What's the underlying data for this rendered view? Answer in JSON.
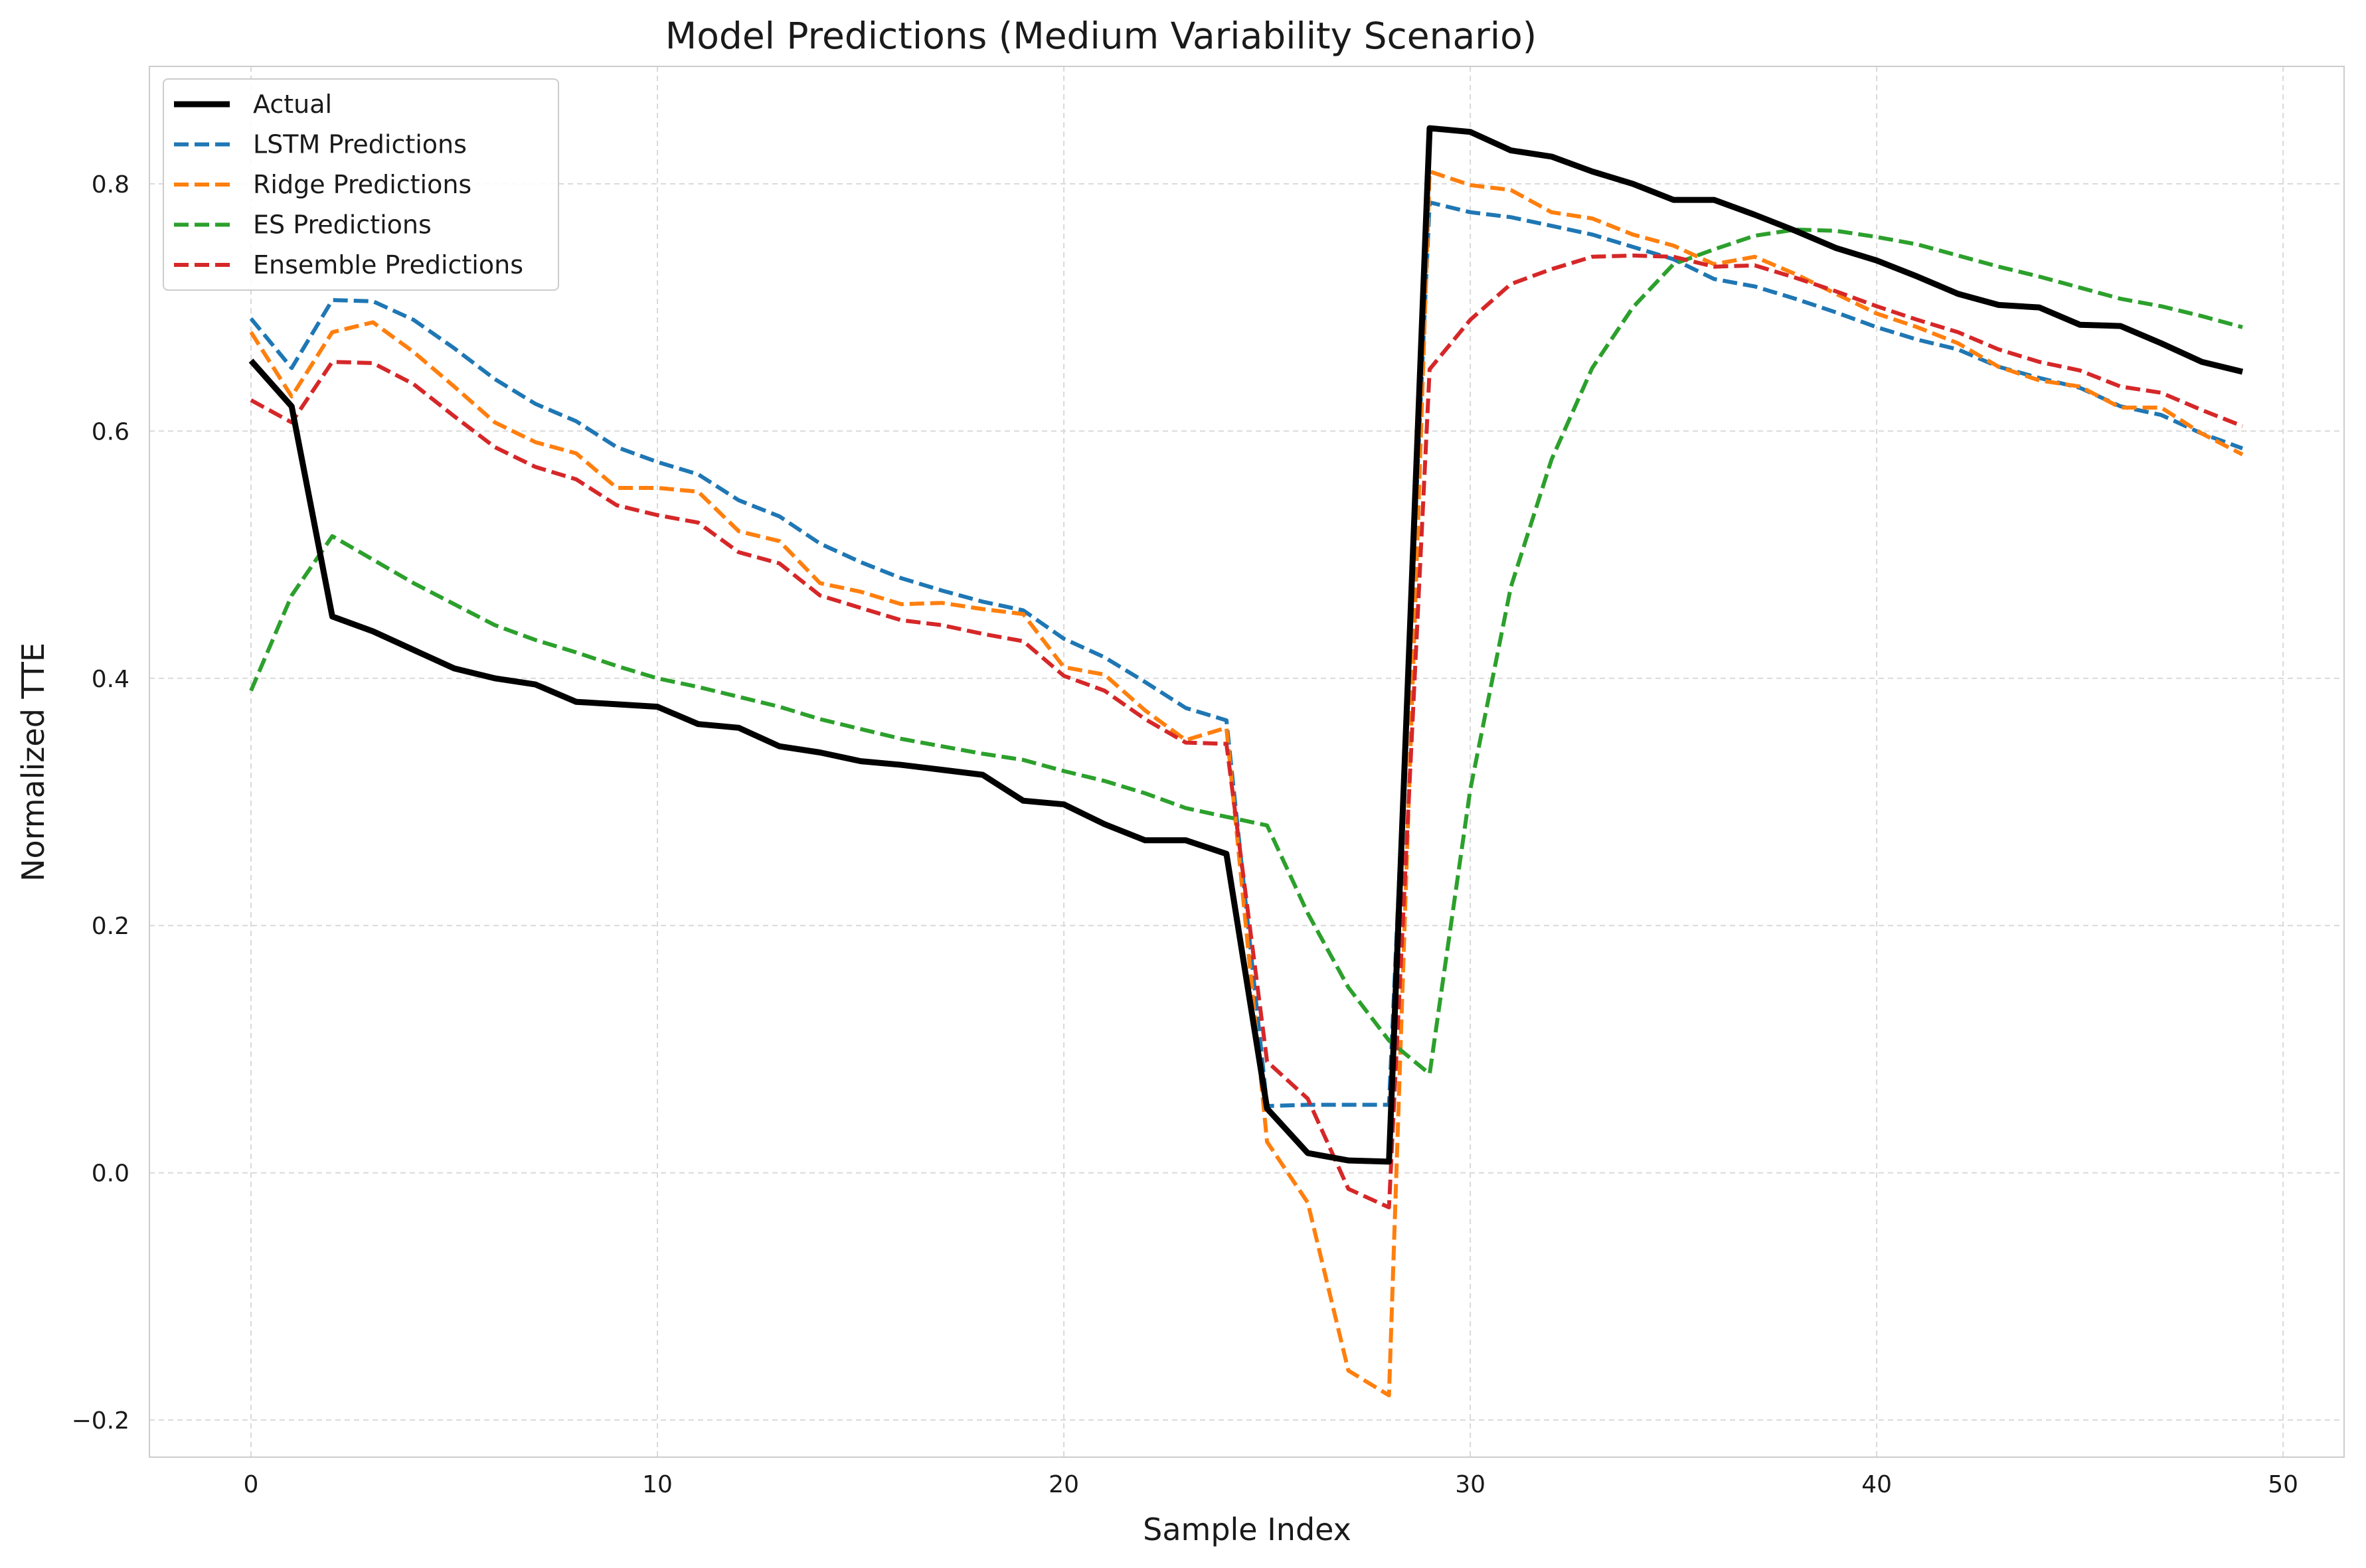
{
  "chart_data": {
    "type": "line",
    "title": "Model Predictions (Medium Variability Scenario)",
    "xlabel": "Sample Index",
    "ylabel": "Normalized TTE",
    "xlim": [
      -2.5,
      51.5
    ],
    "ylim": [
      -0.23,
      0.895
    ],
    "xticks": [
      0,
      10,
      20,
      30,
      40,
      50
    ],
    "yticks": [
      -0.2,
      0.0,
      0.2,
      0.4,
      0.6,
      0.8
    ],
    "xtick_labels": [
      "0",
      "10",
      "20",
      "30",
      "40",
      "50"
    ],
    "ytick_labels": [
      "−0.2",
      "0.0",
      "0.2",
      "0.4",
      "0.6",
      "0.8"
    ],
    "grid": true,
    "legend_position": "top-left",
    "x": [
      0,
      1,
      2,
      3,
      4,
      5,
      6,
      7,
      8,
      9,
      10,
      11,
      12,
      13,
      14,
      15,
      16,
      17,
      18,
      19,
      20,
      21,
      22,
      23,
      24,
      25,
      26,
      27,
      28,
      29,
      30,
      31,
      32,
      33,
      34,
      35,
      36,
      37,
      38,
      39,
      40,
      41,
      42,
      43,
      44,
      45,
      46,
      47,
      48,
      49
    ],
    "series": [
      {
        "name": "Actual",
        "color": "#000000",
        "style": "solid",
        "values": [
          0.657,
          0.62,
          0.45,
          0.438,
          0.423,
          0.408,
          0.4,
          0.395,
          0.381,
          0.379,
          0.377,
          0.363,
          0.36,
          0.345,
          0.34,
          0.333,
          0.33,
          0.326,
          0.322,
          0.301,
          0.298,
          0.282,
          0.269,
          0.269,
          0.258,
          0.052,
          0.016,
          0.01,
          0.009,
          0.845,
          0.842,
          0.827,
          0.822,
          0.81,
          0.8,
          0.787,
          0.787,
          0.775,
          0.762,
          0.748,
          0.738,
          0.725,
          0.711,
          0.702,
          0.7,
          0.686,
          0.685,
          0.671,
          0.656,
          0.648
        ]
      },
      {
        "name": "LSTM Predictions",
        "color": "#1f77b4",
        "style": "dashed",
        "values": [
          0.691,
          0.651,
          0.706,
          0.705,
          0.69,
          0.667,
          0.642,
          0.622,
          0.608,
          0.587,
          0.575,
          0.565,
          0.544,
          0.531,
          0.509,
          0.494,
          0.481,
          0.471,
          0.462,
          0.455,
          0.432,
          0.417,
          0.397,
          0.376,
          0.366,
          0.054,
          0.055,
          0.055,
          0.055,
          0.785,
          0.777,
          0.773,
          0.766,
          0.759,
          0.749,
          0.739,
          0.723,
          0.717,
          0.707,
          0.696,
          0.684,
          0.674,
          0.666,
          0.652,
          0.643,
          0.635,
          0.62,
          0.613,
          0.598,
          0.586
        ]
      },
      {
        "name": "Ridge Predictions",
        "color": "#ff7f0e",
        "style": "dashed",
        "values": [
          0.68,
          0.628,
          0.68,
          0.688,
          0.664,
          0.636,
          0.607,
          0.591,
          0.582,
          0.554,
          0.554,
          0.551,
          0.519,
          0.511,
          0.477,
          0.47,
          0.46,
          0.461,
          0.456,
          0.452,
          0.409,
          0.403,
          0.374,
          0.35,
          0.36,
          0.025,
          -0.024,
          -0.16,
          -0.18,
          0.81,
          0.799,
          0.795,
          0.777,
          0.772,
          0.759,
          0.75,
          0.735,
          0.741,
          0.727,
          0.711,
          0.695,
          0.684,
          0.671,
          0.652,
          0.641,
          0.636,
          0.619,
          0.619,
          0.598,
          0.581
        ]
      },
      {
        "name": "ES Predictions",
        "color": "#2ca02c",
        "style": "dashed",
        "values": [
          0.39,
          0.467,
          0.515,
          0.496,
          0.477,
          0.46,
          0.443,
          0.431,
          0.421,
          0.41,
          0.4,
          0.393,
          0.385,
          0.377,
          0.367,
          0.359,
          0.351,
          0.345,
          0.339,
          0.334,
          0.325,
          0.317,
          0.307,
          0.295,
          0.288,
          0.281,
          0.21,
          0.15,
          0.107,
          0.08,
          0.31,
          0.474,
          0.577,
          0.651,
          0.7,
          0.735,
          0.747,
          0.758,
          0.763,
          0.762,
          0.757,
          0.751,
          0.742,
          0.733,
          0.725,
          0.716,
          0.707,
          0.701,
          0.693,
          0.684
        ]
      },
      {
        "name": "Ensemble Predictions",
        "color": "#d62728",
        "style": "dashed",
        "values": [
          0.625,
          0.607,
          0.656,
          0.655,
          0.638,
          0.612,
          0.587,
          0.571,
          0.561,
          0.54,
          0.532,
          0.526,
          0.502,
          0.493,
          0.467,
          0.457,
          0.447,
          0.443,
          0.436,
          0.43,
          0.402,
          0.39,
          0.367,
          0.348,
          0.347,
          0.09,
          0.06,
          -0.013,
          -0.028,
          0.65,
          0.69,
          0.719,
          0.731,
          0.741,
          0.742,
          0.741,
          0.733,
          0.734,
          0.724,
          0.713,
          0.701,
          0.69,
          0.68,
          0.666,
          0.656,
          0.649,
          0.636,
          0.631,
          0.617,
          0.604
        ]
      }
    ]
  }
}
